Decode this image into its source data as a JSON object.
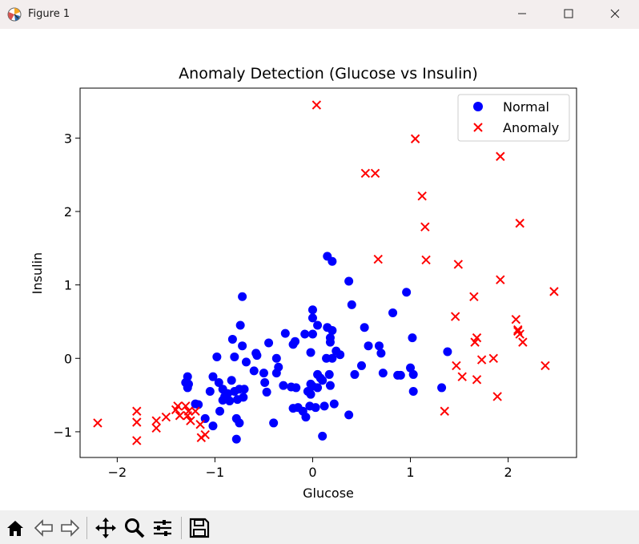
{
  "window": {
    "title": "Figure 1"
  },
  "toolbar": {
    "buttons": [
      {
        "icon": "home-icon"
      },
      {
        "icon": "back-arrow-icon"
      },
      {
        "icon": "forward-arrow-icon"
      },
      {
        "icon": "pan-move-icon"
      },
      {
        "icon": "zoom-magnifier-icon"
      },
      {
        "icon": "configure-subplots-icon"
      },
      {
        "icon": "save-disk-icon"
      }
    ]
  },
  "chart_data": {
    "type": "scatter",
    "title": "Anomaly Detection (Glucose vs Insulin)",
    "xlabel": "Glucose",
    "ylabel": "Insulin",
    "xlim": [
      -2.38,
      2.7
    ],
    "ylim": [
      -1.35,
      3.68
    ],
    "xticks": [
      -2,
      -1,
      0,
      1,
      2
    ],
    "yticks": [
      -1,
      0,
      1,
      2,
      3
    ],
    "xtick_labels": [
      "−2",
      "−1",
      "0",
      "1",
      "2"
    ],
    "ytick_labels": [
      "−1",
      "0",
      "1",
      "2",
      "3"
    ],
    "grid": false,
    "legend": {
      "location": "upper right",
      "entries": [
        "Normal",
        "Anomaly"
      ]
    },
    "series": [
      {
        "name": "Normal",
        "marker": "circle",
        "color": "#0000ff",
        "points": [
          [
            -1.3,
            -0.33
          ],
          [
            -1.28,
            -0.25
          ],
          [
            -1.27,
            -0.35
          ],
          [
            -1.28,
            -0.4
          ],
          [
            -1.2,
            -0.62
          ],
          [
            -1.17,
            -0.63
          ],
          [
            -1.1,
            -0.82
          ],
          [
            -1.05,
            -0.45
          ],
          [
            -1.02,
            -0.92
          ],
          [
            -1.02,
            -0.25
          ],
          [
            -0.98,
            0.02
          ],
          [
            -0.96,
            -0.33
          ],
          [
            -0.95,
            -0.72
          ],
          [
            -0.92,
            -0.57
          ],
          [
            -0.92,
            -0.42
          ],
          [
            -0.9,
            -0.52
          ],
          [
            -0.87,
            -0.48
          ],
          [
            -0.85,
            -0.58
          ],
          [
            -0.83,
            -0.3
          ],
          [
            -0.82,
            0.26
          ],
          [
            -0.8,
            -0.45
          ],
          [
            -0.8,
            0.02
          ],
          [
            -0.78,
            -0.82
          ],
          [
            -0.78,
            -1.1
          ],
          [
            -0.77,
            -0.56
          ],
          [
            -0.75,
            -0.88
          ],
          [
            -0.75,
            -0.42
          ],
          [
            -0.74,
            0.45
          ],
          [
            -0.72,
            0.17
          ],
          [
            -0.71,
            -0.53
          ],
          [
            -0.7,
            -0.42
          ],
          [
            -0.72,
            0.84
          ],
          [
            -0.68,
            -0.05
          ],
          [
            -0.6,
            -0.17
          ],
          [
            -0.58,
            0.07
          ],
          [
            -0.57,
            0.04
          ],
          [
            -0.5,
            -0.2
          ],
          [
            -0.49,
            -0.33
          ],
          [
            -0.47,
            -0.46
          ],
          [
            -0.45,
            0.21
          ],
          [
            -0.4,
            -0.88
          ],
          [
            -0.37,
            -0.2
          ],
          [
            -0.37,
            0.0
          ],
          [
            -0.35,
            -0.12
          ],
          [
            -0.3,
            -0.37
          ],
          [
            -0.28,
            0.34
          ],
          [
            -0.22,
            -0.39
          ],
          [
            -0.2,
            0.19
          ],
          [
            -0.18,
            0.23
          ],
          [
            -0.17,
            -0.4
          ],
          [
            -0.15,
            -0.67
          ],
          [
            -0.1,
            -0.72
          ],
          [
            -0.08,
            0.33
          ],
          [
            -0.07,
            -0.8
          ],
          [
            -0.05,
            -0.45
          ],
          [
            -0.03,
            -0.65
          ],
          [
            -0.02,
            0.08
          ],
          [
            -0.02,
            -0.35
          ],
          [
            -0.02,
            -0.49
          ],
          [
            0.0,
            -0.38
          ],
          [
            0.0,
            0.55
          ],
          [
            0.0,
            0.33
          ],
          [
            0.03,
            -0.67
          ],
          [
            0.05,
            -0.4
          ],
          [
            0.05,
            0.45
          ],
          [
            0.05,
            -0.22
          ],
          [
            0.08,
            -0.27
          ],
          [
            0.1,
            -0.3
          ],
          [
            0.1,
            -1.06
          ],
          [
            0.12,
            -0.65
          ],
          [
            0.14,
            0.0
          ],
          [
            0.15,
            1.39
          ],
          [
            0.15,
            0.42
          ],
          [
            0.17,
            -0.22
          ],
          [
            0.18,
            0.28
          ],
          [
            0.18,
            0.22
          ],
          [
            0.18,
            -0.37
          ],
          [
            0.2,
            1.32
          ],
          [
            0.2,
            0.38
          ],
          [
            0.2,
            0.0
          ],
          [
            0.22,
            -0.62
          ],
          [
            0.24,
            0.1
          ],
          [
            0.28,
            0.05
          ],
          [
            0.37,
            1.05
          ],
          [
            0.37,
            -0.77
          ],
          [
            0.4,
            0.73
          ],
          [
            0.43,
            -0.22
          ],
          [
            0.5,
            -0.1
          ],
          [
            0.53,
            0.42
          ],
          [
            0.57,
            0.17
          ],
          [
            0.68,
            0.17
          ],
          [
            0.7,
            0.07
          ],
          [
            0.72,
            -0.2
          ],
          [
            0.82,
            0.62
          ],
          [
            0.87,
            -0.23
          ],
          [
            0.9,
            -0.23
          ],
          [
            0.96,
            0.9
          ],
          [
            1.0,
            -0.13
          ],
          [
            1.02,
            0.28
          ],
          [
            1.03,
            -0.22
          ],
          [
            1.03,
            -0.45
          ],
          [
            1.32,
            -0.4
          ],
          [
            1.38,
            0.09
          ],
          [
            0.0,
            0.66
          ],
          [
            -0.2,
            -0.68
          ]
        ]
      },
      {
        "name": "Anomaly",
        "marker": "x",
        "color": "#ff0000",
        "points": [
          [
            -2.2,
            -0.88
          ],
          [
            -1.8,
            -0.72
          ],
          [
            -1.8,
            -0.87
          ],
          [
            -1.8,
            -1.12
          ],
          [
            -1.6,
            -0.85
          ],
          [
            -1.6,
            -0.95
          ],
          [
            -1.5,
            -0.8
          ],
          [
            -1.4,
            -0.7
          ],
          [
            -1.38,
            -0.65
          ],
          [
            -1.36,
            -0.78
          ],
          [
            -1.3,
            -0.65
          ],
          [
            -1.28,
            -0.78
          ],
          [
            -1.27,
            -0.72
          ],
          [
            -1.25,
            -0.85
          ],
          [
            -1.2,
            -0.72
          ],
          [
            -1.15,
            -0.9
          ],
          [
            -1.14,
            -1.08
          ],
          [
            -1.1,
            -1.04
          ],
          [
            0.04,
            3.45
          ],
          [
            0.54,
            2.52
          ],
          [
            0.64,
            2.52
          ],
          [
            0.67,
            1.35
          ],
          [
            1.05,
            2.99
          ],
          [
            1.12,
            2.21
          ],
          [
            1.15,
            1.79
          ],
          [
            1.16,
            1.34
          ],
          [
            1.35,
            -0.72
          ],
          [
            1.46,
            0.57
          ],
          [
            1.47,
            -0.1
          ],
          [
            1.49,
            1.28
          ],
          [
            1.53,
            -0.25
          ],
          [
            1.65,
            0.84
          ],
          [
            1.66,
            0.22
          ],
          [
            1.68,
            0.28
          ],
          [
            1.68,
            -0.29
          ],
          [
            1.73,
            -0.02
          ],
          [
            1.85,
            0.0
          ],
          [
            1.89,
            -0.52
          ],
          [
            1.92,
            1.07
          ],
          [
            1.92,
            2.75
          ],
          [
            2.08,
            0.53
          ],
          [
            2.1,
            0.37
          ],
          [
            2.12,
            0.33
          ],
          [
            2.12,
            1.84
          ],
          [
            2.15,
            0.22
          ],
          [
            2.38,
            -0.1
          ],
          [
            2.47,
            0.91
          ],
          [
            2.1,
            0.39
          ]
        ]
      }
    ]
  }
}
